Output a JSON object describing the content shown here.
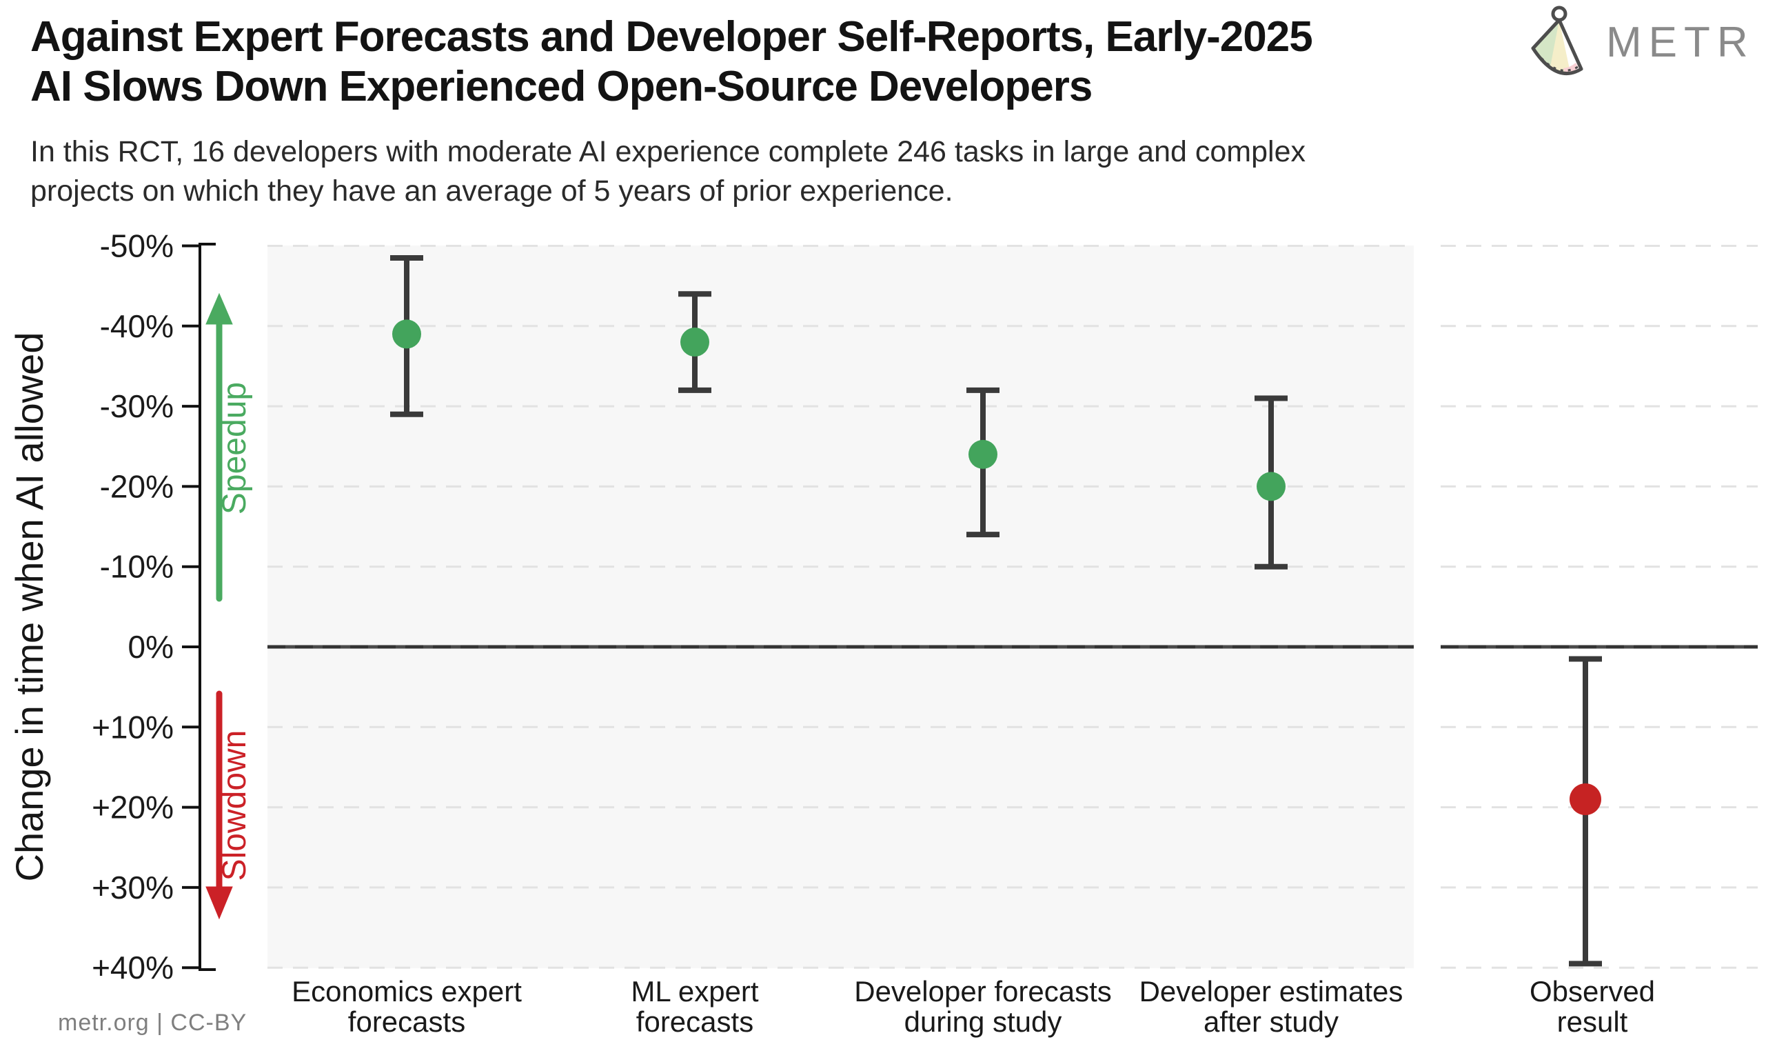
{
  "header": {
    "title_line1": "Against Expert Forecasts and Developer Self-Reports, Early-2025",
    "title_line2": "AI Slows Down Experienced Open-Source Developers",
    "subtitle_line1": "In this RCT, 16 developers with moderate AI experience complete 246 tasks in large and complex",
    "subtitle_line2": "projects on which they have an average of 5 years of prior experience.",
    "brand": "METR"
  },
  "footer": {
    "credit": "metr.org  |  CC-BY"
  },
  "axis": {
    "label": "Change in time when AI allowed",
    "ticks": [
      "-50%",
      "-40%",
      "-30%",
      "-20%",
      "-10%",
      "0%",
      "+10%",
      "+20%",
      "+30%",
      "+40%"
    ],
    "tick_values": [
      -50,
      -40,
      -30,
      -20,
      -10,
      0,
      10,
      20,
      30,
      40
    ],
    "speedup_label": "Speedup",
    "slowdown_label": "Slowdown"
  },
  "chart_data": {
    "type": "scatter",
    "title": "Against Expert Forecasts and Developer Self-Reports, Early-2025 AI Slows Down Experienced Open-Source Developers",
    "ylabel": "Change in time when AI allowed",
    "y_unit": "percent change in completion time (negative = speedup, positive = slowdown)",
    "ylim": [
      -50,
      40
    ],
    "grid": "horizontal dashed every 10%, solid emphasized line at 0%",
    "legend_position": "none",
    "series": [
      {
        "label": [
          "Economics expert",
          "forecasts"
        ],
        "value": -39,
        "ci": [
          -48.5,
          -29
        ],
        "color": "#43a45c",
        "panel": "forecasts"
      },
      {
        "label": [
          "ML expert",
          "forecasts"
        ],
        "value": -38,
        "ci": [
          -44,
          -32
        ],
        "color": "#43a45c",
        "panel": "forecasts"
      },
      {
        "label": [
          "Developer forecasts",
          "during study"
        ],
        "value": -24,
        "ci": [
          -32,
          -14
        ],
        "color": "#43a45c",
        "panel": "forecasts"
      },
      {
        "label": [
          "Developer estimates",
          "after study"
        ],
        "value": -20,
        "ci": [
          -31,
          -10
        ],
        "color": "#43a45c",
        "panel": "forecasts"
      },
      {
        "label": [
          "Observed",
          "result"
        ],
        "value": 19,
        "ci": [
          1.5,
          39.5
        ],
        "color": "#c62323",
        "panel": "observed"
      }
    ],
    "annotations": {
      "speedup": "Speedup",
      "slowdown": "Slowdown"
    }
  },
  "colors": {
    "arrow_green": "#4aaa60",
    "arrow_red": "#cb2127",
    "dot_green": "#43a45c",
    "dot_red": "#c62323",
    "error_bar": "#3a3a3a",
    "panel_bg": "#f7f7f7",
    "gridline": "#e2e2e2",
    "zero_line": "#333333",
    "axis_ink": "#111111",
    "brand_gray": "#8a8a8a",
    "logo_green": "#d5e6c6",
    "logo_cream": "#f5eec9",
    "logo_pink": "#f8d0d4",
    "logo_outline": "#4d4d4d"
  }
}
